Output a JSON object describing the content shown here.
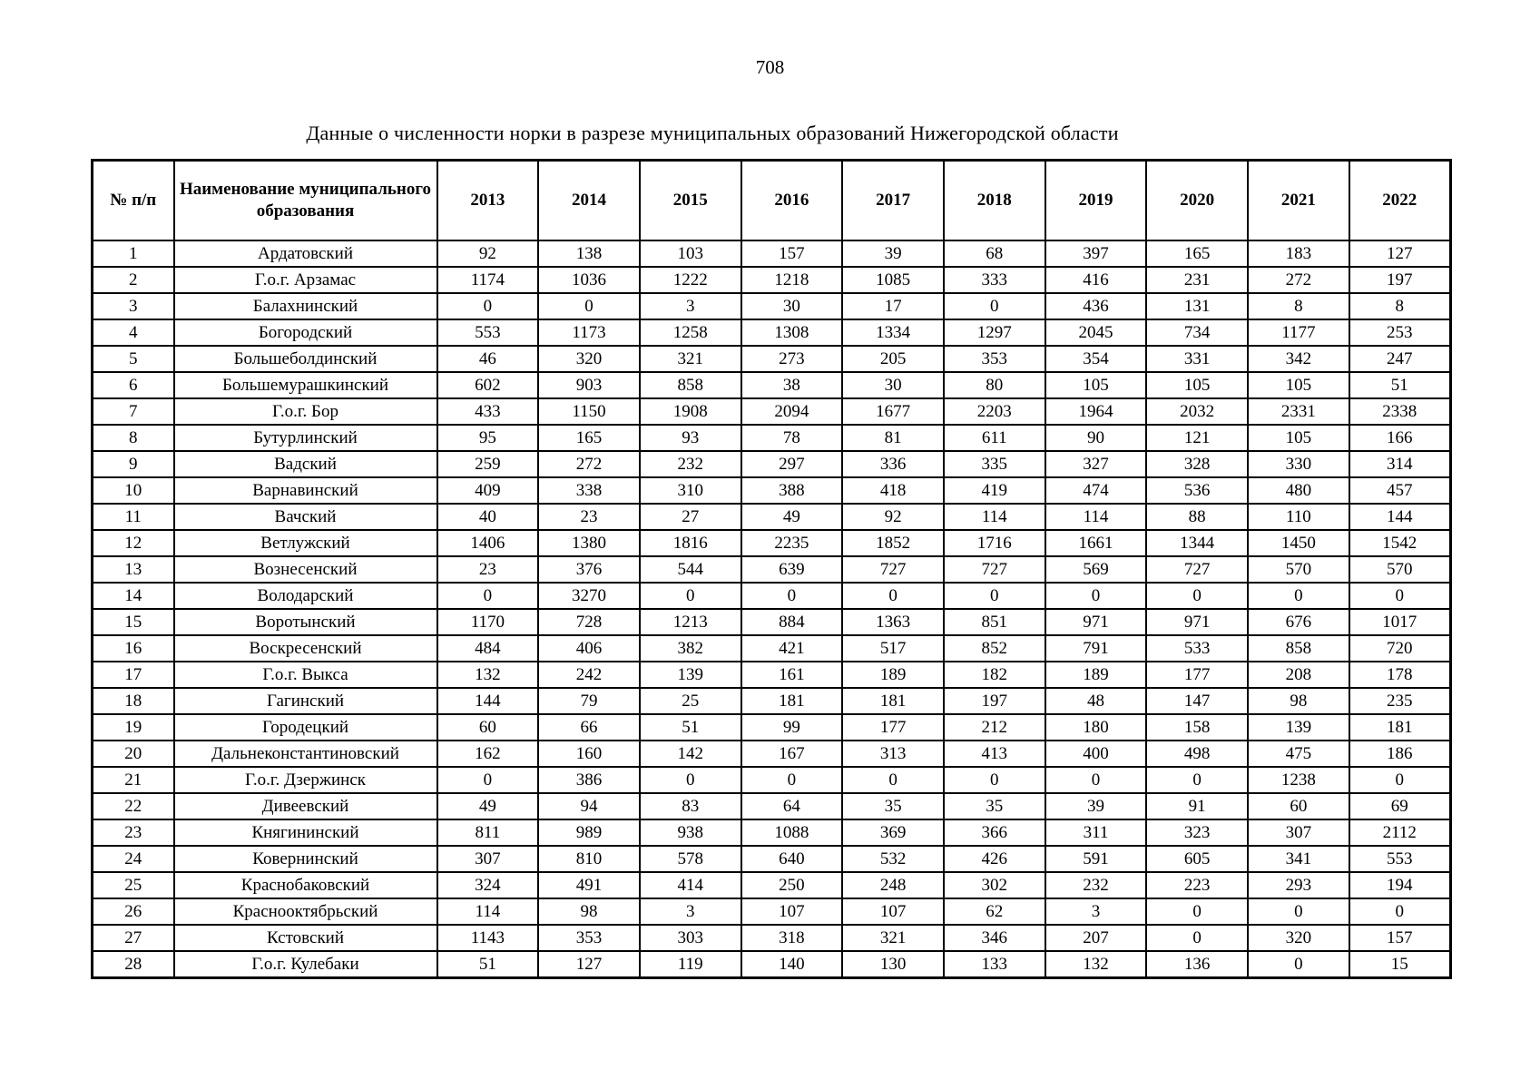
{
  "page": {
    "number": "708",
    "title": "Данные о численности норки в разрезе муниципальных образований Нижегородской области"
  },
  "table": {
    "header": {
      "num": "№ п/п",
      "name": "Наименование муниципального образования",
      "years": [
        "2013",
        "2014",
        "2015",
        "2016",
        "2017",
        "2018",
        "2019",
        "2020",
        "2021",
        "2022"
      ]
    },
    "rows": [
      {
        "num": "1",
        "name": "Ардатовский",
        "values": [
          "92",
          "138",
          "103",
          "157",
          "39",
          "68",
          "397",
          "165",
          "183",
          "127"
        ]
      },
      {
        "num": "2",
        "name": "Г.о.г. Арзамас",
        "values": [
          "1174",
          "1036",
          "1222",
          "1218",
          "1085",
          "333",
          "416",
          "231",
          "272",
          "197"
        ]
      },
      {
        "num": "3",
        "name": "Балахнинский",
        "values": [
          "0",
          "0",
          "3",
          "30",
          "17",
          "0",
          "436",
          "131",
          "8",
          "8"
        ]
      },
      {
        "num": "4",
        "name": "Богородский",
        "values": [
          "553",
          "1173",
          "1258",
          "1308",
          "1334",
          "1297",
          "2045",
          "734",
          "1177",
          "253"
        ]
      },
      {
        "num": "5",
        "name": "Большеболдинский",
        "values": [
          "46",
          "320",
          "321",
          "273",
          "205",
          "353",
          "354",
          "331",
          "342",
          "247"
        ]
      },
      {
        "num": "6",
        "name": "Большемурашкинский",
        "values": [
          "602",
          "903",
          "858",
          "38",
          "30",
          "80",
          "105",
          "105",
          "105",
          "51"
        ]
      },
      {
        "num": "7",
        "name": "Г.о.г. Бор",
        "values": [
          "433",
          "1150",
          "1908",
          "2094",
          "1677",
          "2203",
          "1964",
          "2032",
          "2331",
          "2338"
        ]
      },
      {
        "num": "8",
        "name": "Бутурлинский",
        "values": [
          "95",
          "165",
          "93",
          "78",
          "81",
          "611",
          "90",
          "121",
          "105",
          "166"
        ]
      },
      {
        "num": "9",
        "name": "Вадский",
        "values": [
          "259",
          "272",
          "232",
          "297",
          "336",
          "335",
          "327",
          "328",
          "330",
          "314"
        ]
      },
      {
        "num": "10",
        "name": "Варнавинский",
        "values": [
          "409",
          "338",
          "310",
          "388",
          "418",
          "419",
          "474",
          "536",
          "480",
          "457"
        ]
      },
      {
        "num": "11",
        "name": "Вачский",
        "values": [
          "40",
          "23",
          "27",
          "49",
          "92",
          "114",
          "114",
          "88",
          "110",
          "144"
        ]
      },
      {
        "num": "12",
        "name": "Ветлужский",
        "values": [
          "1406",
          "1380",
          "1816",
          "2235",
          "1852",
          "1716",
          "1661",
          "1344",
          "1450",
          "1542"
        ]
      },
      {
        "num": "13",
        "name": "Вознесенский",
        "values": [
          "23",
          "376",
          "544",
          "639",
          "727",
          "727",
          "569",
          "727",
          "570",
          "570"
        ]
      },
      {
        "num": "14",
        "name": "Володарский",
        "values": [
          "0",
          "3270",
          "0",
          "0",
          "0",
          "0",
          "0",
          "0",
          "0",
          "0"
        ]
      },
      {
        "num": "15",
        "name": "Воротынский",
        "values": [
          "1170",
          "728",
          "1213",
          "884",
          "1363",
          "851",
          "971",
          "971",
          "676",
          "1017"
        ]
      },
      {
        "num": "16",
        "name": "Воскресенский",
        "values": [
          "484",
          "406",
          "382",
          "421",
          "517",
          "852",
          "791",
          "533",
          "858",
          "720"
        ]
      },
      {
        "num": "17",
        "name": "Г.о.г. Выкса",
        "values": [
          "132",
          "242",
          "139",
          "161",
          "189",
          "182",
          "189",
          "177",
          "208",
          "178"
        ]
      },
      {
        "num": "18",
        "name": "Гагинский",
        "values": [
          "144",
          "79",
          "25",
          "181",
          "181",
          "197",
          "48",
          "147",
          "98",
          "235"
        ]
      },
      {
        "num": "19",
        "name": "Городецкий",
        "values": [
          "60",
          "66",
          "51",
          "99",
          "177",
          "212",
          "180",
          "158",
          "139",
          "181"
        ]
      },
      {
        "num": "20",
        "name": "Дальнеконстантиновский",
        "values": [
          "162",
          "160",
          "142",
          "167",
          "313",
          "413",
          "400",
          "498",
          "475",
          "186"
        ]
      },
      {
        "num": "21",
        "name": "Г.о.г. Дзержинск",
        "values": [
          "0",
          "386",
          "0",
          "0",
          "0",
          "0",
          "0",
          "0",
          "1238",
          "0"
        ]
      },
      {
        "num": "22",
        "name": "Дивеевский",
        "values": [
          "49",
          "94",
          "83",
          "64",
          "35",
          "35",
          "39",
          "91",
          "60",
          "69"
        ]
      },
      {
        "num": "23",
        "name": "Княгининский",
        "values": [
          "811",
          "989",
          "938",
          "1088",
          "369",
          "366",
          "311",
          "323",
          "307",
          "2112"
        ]
      },
      {
        "num": "24",
        "name": "Ковернинский",
        "values": [
          "307",
          "810",
          "578",
          "640",
          "532",
          "426",
          "591",
          "605",
          "341",
          "553"
        ]
      },
      {
        "num": "25",
        "name": "Краснобаковский",
        "values": [
          "324",
          "491",
          "414",
          "250",
          "248",
          "302",
          "232",
          "223",
          "293",
          "194"
        ]
      },
      {
        "num": "26",
        "name": "Краснооктябрьский",
        "values": [
          "114",
          "98",
          "3",
          "107",
          "107",
          "62",
          "3",
          "0",
          "0",
          "0"
        ]
      },
      {
        "num": "27",
        "name": "Кстовский",
        "values": [
          "1143",
          "353",
          "303",
          "318",
          "321",
          "346",
          "207",
          "0",
          "320",
          "157"
        ]
      },
      {
        "num": "28",
        "name": "Г.о.г. Кулебаки",
        "values": [
          "51",
          "127",
          "119",
          "140",
          "130",
          "133",
          "132",
          "136",
          "0",
          "15"
        ]
      }
    ]
  }
}
